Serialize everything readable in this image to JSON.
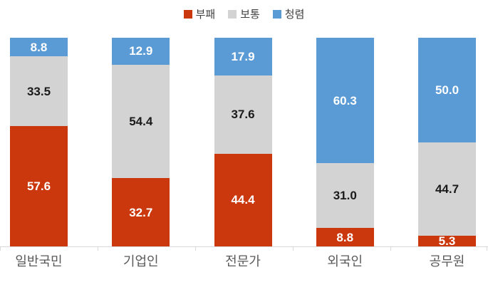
{
  "chart_data": {
    "type": "bar",
    "stacked": true,
    "orientation": "vertical",
    "title": "",
    "xlabel": "",
    "ylabel": "",
    "ylim": [
      0,
      100
    ],
    "grid": false,
    "legend_position": "top",
    "value_label_decimals": 1,
    "categories": [
      "일반국민",
      "기업인",
      "전문가",
      "외국인",
      "공무원"
    ],
    "series": [
      {
        "key": "corrupt",
        "name": "부패",
        "color": "#cb380d",
        "label_color": "#ffffff",
        "values": [
          57.6,
          32.7,
          44.4,
          8.8,
          5.3
        ]
      },
      {
        "key": "neutral",
        "name": "보통",
        "color": "#d3d3d3",
        "label_color": "#1a1a1a",
        "values": [
          33.5,
          54.4,
          37.6,
          31.0,
          44.7
        ]
      },
      {
        "key": "clean",
        "name": "청렴",
        "color": "#5b9bd5",
        "label_color": "#ffffff",
        "values": [
          8.8,
          12.9,
          17.9,
          60.3,
          50.0
        ]
      }
    ],
    "axis_color": "#d9d9d9"
  }
}
